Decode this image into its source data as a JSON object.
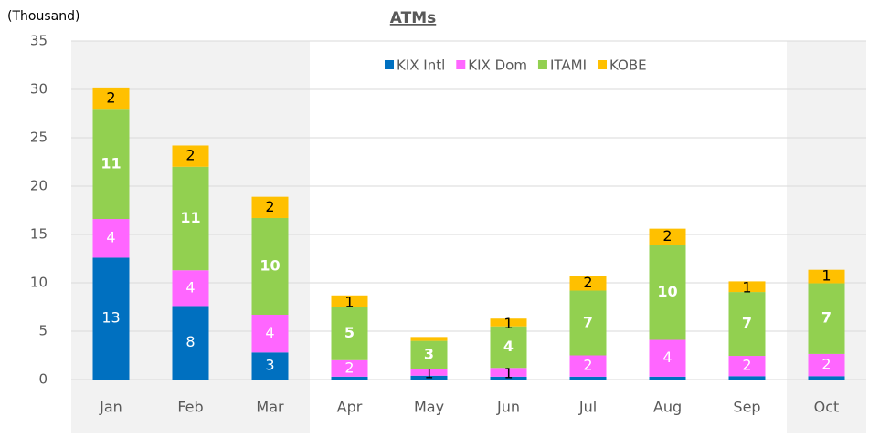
{
  "chart_data": {
    "type": "bar",
    "stacked": true,
    "title": "ATMs",
    "y_unit_label": "(Thousand)",
    "categories": [
      "Jan",
      "Feb",
      "Mar",
      "Apr",
      "May",
      "Jun",
      "Jul",
      "Aug",
      "Sep",
      "Oct"
    ],
    "series": [
      {
        "name": "KIX Intl",
        "color": "#0070c0",
        "label_color": "#ffffff",
        "values": [
          12.6,
          7.6,
          2.8,
          0.3,
          0.4,
          0.3,
          0.3,
          0.3,
          0.35,
          0.35
        ],
        "value_labels": [
          "13",
          "8",
          "3",
          null,
          null,
          null,
          null,
          null,
          null,
          null
        ]
      },
      {
        "name": "KIX Dom",
        "color": "#ff66ff",
        "label_color": "#ffffff",
        "values": [
          4.0,
          3.7,
          3.9,
          1.7,
          0.7,
          0.9,
          2.2,
          3.8,
          2.1,
          2.3
        ],
        "value_labels": [
          "4",
          "4",
          "4",
          "2",
          "1",
          "1",
          "2",
          "4",
          "2",
          "2"
        ]
      },
      {
        "name": "ITAMI",
        "color": "#92d050",
        "label_color": "#ffffff",
        "values": [
          11.3,
          10.7,
          10.0,
          5.5,
          2.9,
          4.3,
          6.7,
          9.8,
          6.6,
          7.3
        ],
        "value_labels": [
          "11",
          "11",
          "10",
          "5",
          "3",
          "4",
          "7",
          "10",
          "7",
          "7"
        ]
      },
      {
        "name": "KOBE",
        "color": "#ffc000",
        "label_color": "#000000",
        "values": [
          2.3,
          2.2,
          2.2,
          1.2,
          0.4,
          0.8,
          1.5,
          1.7,
          1.1,
          1.4
        ],
        "value_labels": [
          "2",
          "2",
          "2",
          "1",
          null,
          "1",
          "2",
          "2",
          "1",
          "1"
        ]
      }
    ],
    "ylim": [
      0,
      35
    ],
    "yticks": [
      0,
      5,
      10,
      15,
      20,
      25,
      30,
      35
    ],
    "grid": true,
    "legend": "top",
    "shaded_categories": [
      0,
      1,
      2,
      9
    ]
  }
}
